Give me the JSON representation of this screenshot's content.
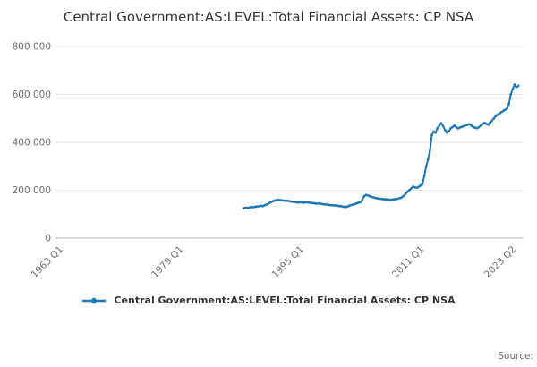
{
  "title": "Central Government:AS:LEVEL:Total Financial Assets: CP NSA",
  "legend": {
    "label": "Central Government:AS:LEVEL:Total Financial Assets: CP NSA"
  },
  "source_label": "Source:",
  "chart_data": {
    "type": "line",
    "title": "Central Government:AS:LEVEL:Total Financial Assets: CP NSA",
    "xlabel": "",
    "ylabel": "",
    "ylim": [
      0,
      800000
    ],
    "ytick_interval": 200000,
    "ytick_labels": [
      "0",
      "200 000",
      "400 000",
      "600 000",
      "800 000"
    ],
    "xlim": [
      1962.3,
      2024.2
    ],
    "xticks": [
      {
        "value": 1963.0,
        "label": "1963 Q1"
      },
      {
        "value": 1979.0,
        "label": "1979 Q1"
      },
      {
        "value": 1995.0,
        "label": "1995 Q1"
      },
      {
        "value": 2011.0,
        "label": "2011 Q1"
      },
      {
        "value": 2023.25,
        "label": "2023 Q2"
      }
    ],
    "grid": true,
    "legend_position": "bottom",
    "line_color": "#1f77b4",
    "grid_color": "#e6e6e6",
    "axis_color": "#bdbdbd",
    "tick_text_color": "#6e6e6e",
    "series": [
      {
        "name": "Central Government:AS:LEVEL:Total Financial Assets: CP NSA",
        "x_start": 1987.0,
        "x_step": 0.25,
        "values": [
          125000,
          127000,
          126000,
          128000,
          130000,
          129000,
          131000,
          132000,
          133000,
          135000,
          134000,
          137000,
          140000,
          144000,
          149000,
          153000,
          156000,
          158000,
          160000,
          159000,
          158000,
          157000,
          156000,
          156000,
          155000,
          153000,
          152000,
          151000,
          150000,
          149000,
          150000,
          149000,
          148000,
          150000,
          149000,
          148000,
          147000,
          146000,
          145000,
          144000,
          145000,
          143000,
          142000,
          141000,
          140000,
          139000,
          138000,
          138000,
          137000,
          136000,
          135000,
          134000,
          133000,
          131000,
          130000,
          132000,
          135000,
          138000,
          140000,
          142000,
          145000,
          148000,
          150000,
          160000,
          175000,
          180000,
          178000,
          175000,
          172000,
          170000,
          168000,
          166000,
          165000,
          164000,
          163000,
          162000,
          162000,
          161000,
          160000,
          161000,
          162000,
          163000,
          165000,
          167000,
          170000,
          176000,
          185000,
          193000,
          200000,
          208000,
          215000,
          212000,
          210000,
          214000,
          220000,
          225000,
          260000,
          300000,
          330000,
          365000,
          430000,
          445000,
          440000,
          460000,
          470000,
          480000,
          468000,
          452000,
          440000,
          446000,
          458000,
          464000,
          470000,
          463000,
          458000,
          462000,
          465000,
          468000,
          471000,
          473000,
          475000,
          470000,
          464000,
          461000,
          459000,
          463000,
          470000,
          476000,
          481000,
          477000,
          474000,
          482000,
          490000,
          500000,
          510000,
          515000,
          520000,
          526000,
          531000,
          536000,
          541000,
          560000,
          600000,
          622000,
          641000,
          630000,
          636000
        ]
      }
    ]
  }
}
